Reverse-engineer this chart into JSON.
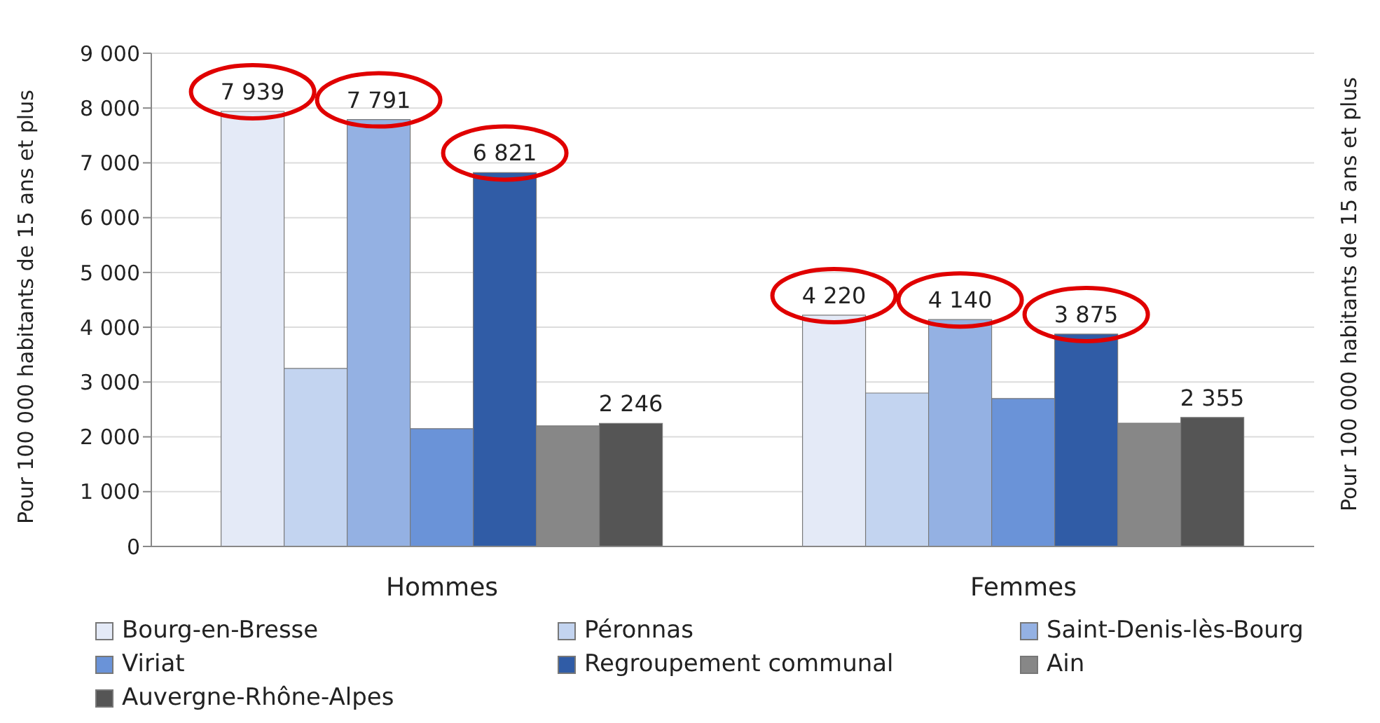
{
  "chart_data": {
    "type": "bar",
    "ylabel": "Pour 100 000 habitants de 15 ans et plus",
    "y2label": "Pour 100 000 habitants de 15 ans et plus",
    "categories": [
      "Hommes",
      "Femmes"
    ],
    "series": [
      {
        "name": "Bourg-en-Bresse",
        "color": "#e4eaf7",
        "values": [
          7939,
          4220
        ],
        "value_labels": [
          "7 939",
          "4 220"
        ]
      },
      {
        "name": "Péronnas",
        "color": "#c3d4f0",
        "values": [
          3250,
          2800
        ],
        "value_labels": [
          null,
          null
        ]
      },
      {
        "name": "Saint-Denis-lès-Bourg",
        "color": "#94b1e3",
        "values": [
          7791,
          4140
        ],
        "value_labels": [
          "7 791",
          "4 140"
        ]
      },
      {
        "name": "Viriat",
        "color": "#6a93d8",
        "values": [
          2150,
          2700
        ],
        "value_labels": [
          null,
          null
        ]
      },
      {
        "name": "Regroupement communal",
        "color": "#305ca6",
        "values": [
          6821,
          3875
        ],
        "value_labels": [
          "6 821",
          "3 875"
        ]
      },
      {
        "name": "Ain",
        "color": "#878787",
        "values": [
          2200,
          2250
        ],
        "value_labels": [
          null,
          null
        ]
      },
      {
        "name": "Auvergne-Rhône-Alpes",
        "color": "#555555",
        "values": [
          2246,
          2355
        ],
        "value_labels": [
          "2 246",
          "2 355"
        ]
      }
    ],
    "ylim": [
      0,
      9000
    ],
    "yticks": [
      0,
      {
        "value": 1000,
        "label": "1 000"
      },
      {
        "value": 2000,
        "label": "2 000"
      },
      {
        "value": 3000,
        "label": "3 000"
      },
      {
        "value": 4000,
        "label": "4 000"
      },
      {
        "value": 5000,
        "label": "5 000"
      },
      {
        "value": 6000,
        "label": "6 000"
      },
      {
        "value": 7000,
        "label": "7 000"
      },
      {
        "value": 8000,
        "label": "8 000"
      },
      {
        "value": 9000,
        "label": "9 000"
      }
    ],
    "grid": "y",
    "legend": "bottom"
  }
}
